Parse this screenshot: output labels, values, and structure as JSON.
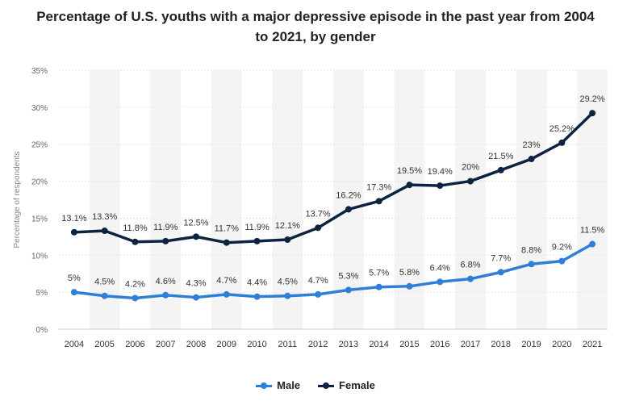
{
  "chart_data": {
    "type": "line",
    "title_line1": "Percentage of U.S. youths with a major depressive episode in the past year from 2004",
    "title_line2": "to 2021, by gender",
    "xlabel": "",
    "ylabel": "Percentage of respondents",
    "ylim": [
      0,
      35
    ],
    "yticks": [
      "0%",
      "5%",
      "10%",
      "15%",
      "20%",
      "25%",
      "30%",
      "35%"
    ],
    "ytick_values": [
      0,
      5,
      10,
      15,
      20,
      25,
      30,
      35
    ],
    "categories": [
      "2004",
      "2005",
      "2006",
      "2007",
      "2008",
      "2009",
      "2010",
      "2011",
      "2012",
      "2013",
      "2014",
      "2015",
      "2016",
      "2017",
      "2018",
      "2019",
      "2020",
      "2021"
    ],
    "series": [
      {
        "name": "Male",
        "color": "#2f7ed8",
        "values": [
          5,
          4.5,
          4.2,
          4.6,
          4.3,
          4.7,
          4.4,
          4.5,
          4.7,
          5.3,
          5.7,
          5.8,
          6.4,
          6.8,
          7.7,
          8.8,
          9.2,
          11.5
        ],
        "labels": [
          "5%",
          "4.5%",
          "4.2%",
          "4.6%",
          "4.3%",
          "4.7%",
          "4.4%",
          "4.5%",
          "4.7%",
          "5.3%",
          "5.7%",
          "5.8%",
          "6.4%",
          "6.8%",
          "7.7%",
          "8.8%",
          "9.2%",
          "11.5%"
        ]
      },
      {
        "name": "Female",
        "color": "#0d2440",
        "values": [
          13.1,
          13.3,
          11.8,
          11.9,
          12.5,
          11.7,
          11.9,
          12.1,
          13.7,
          16.2,
          17.3,
          19.5,
          19.4,
          20,
          21.5,
          23,
          25.2,
          29.2
        ],
        "labels": [
          "13.1%",
          "13.3%",
          "11.8%",
          "11.9%",
          "12.5%",
          "11.7%",
          "11.9%",
          "12.1%",
          "13.7%",
          "16.2%",
          "17.3%",
          "19.5%",
          "19.4%",
          "20%",
          "21.5%",
          "23%",
          "25.2%",
          "29.2%"
        ]
      }
    ],
    "grid": true,
    "legend": "bottom-center"
  }
}
